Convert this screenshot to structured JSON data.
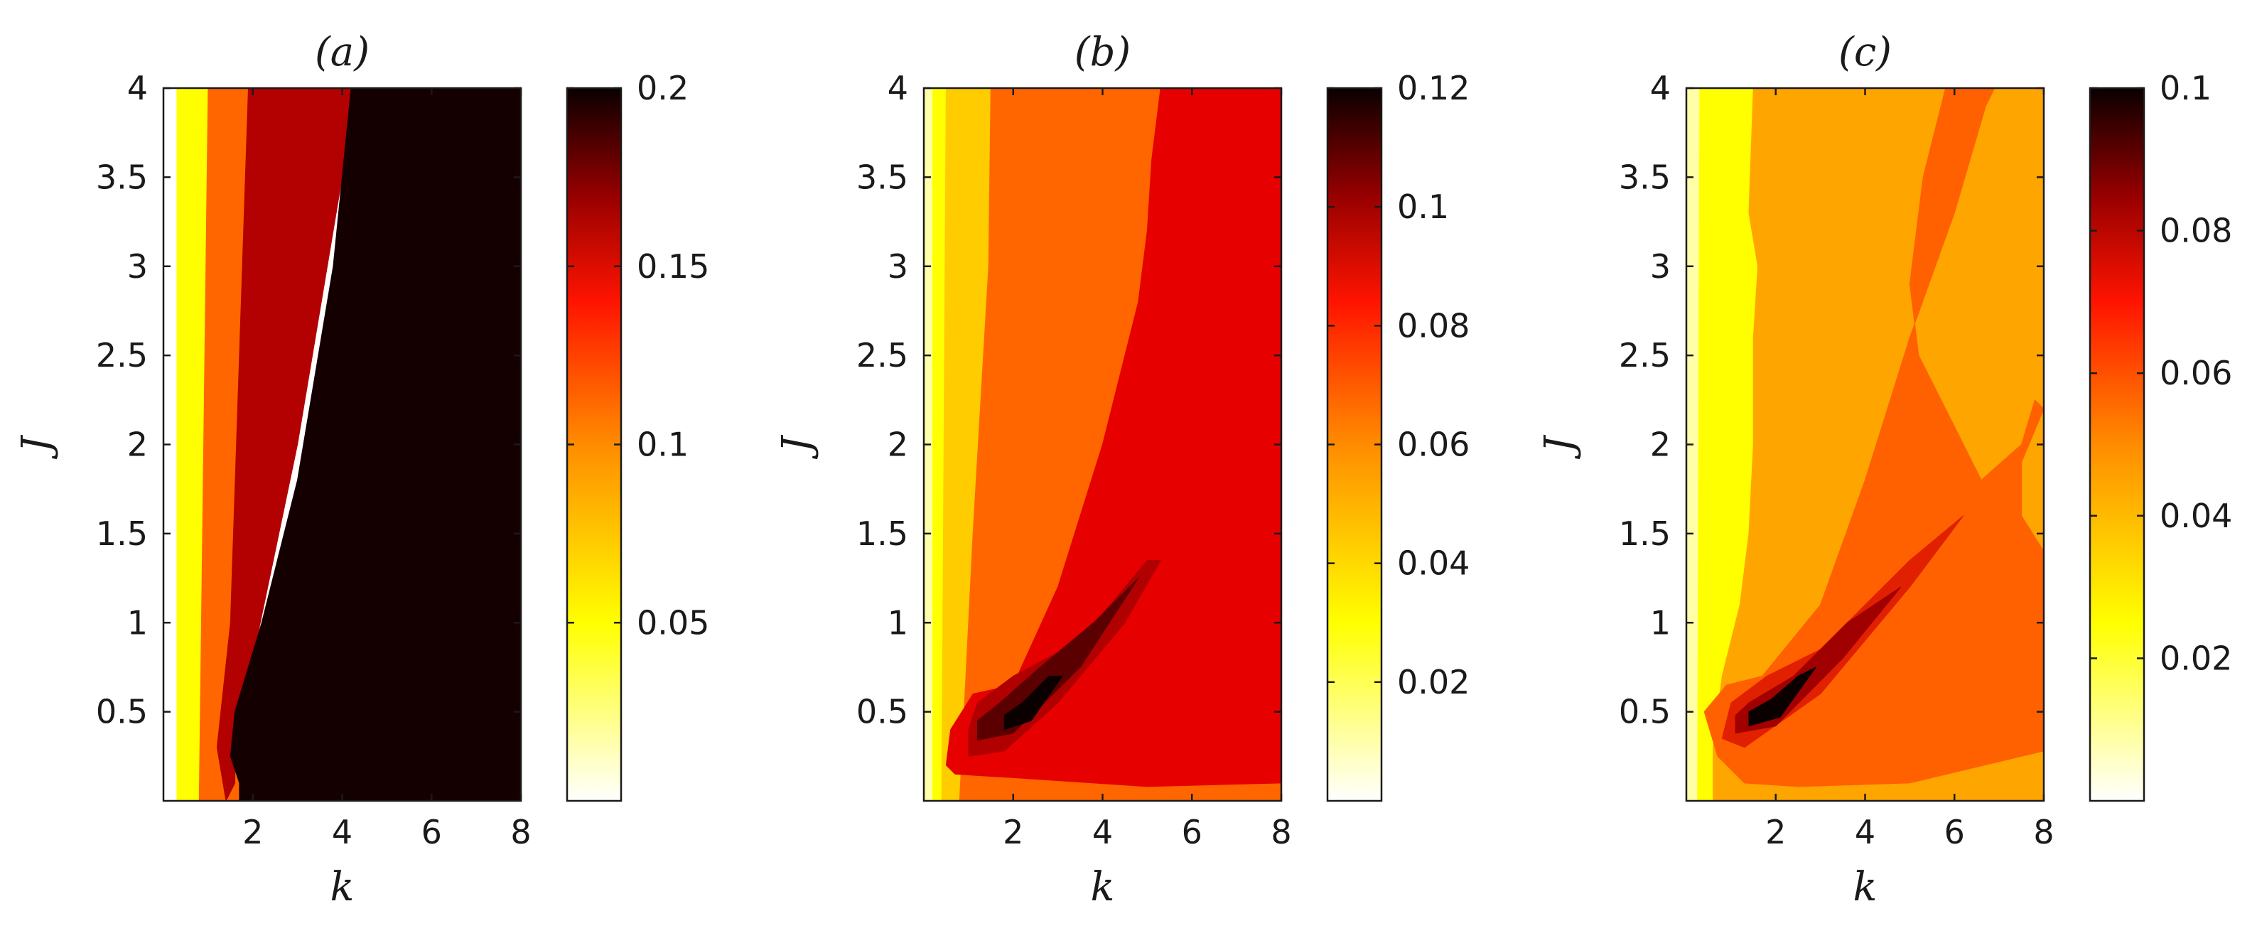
{
  "chart_data": [
    {
      "type": "heatmap",
      "title": "(a)",
      "xlabel": "k",
      "ylabel": "J",
      "xlim": [
        0,
        8
      ],
      "ylim": [
        0,
        4
      ],
      "xticks": [
        "2",
        "4",
        "6",
        "8"
      ],
      "yticks": [
        "0.5",
        "1",
        "1.5",
        "2",
        "2.5",
        "3",
        "3.5",
        "4"
      ],
      "colorbar": {
        "range": [
          0,
          0.2
        ],
        "ticks": [
          "0.05",
          "0.1",
          "0.15",
          "0.2"
        ]
      },
      "regions": [
        {
          "level": 0.0,
          "color": "#ffffff",
          "points": [
            [
              0,
              0
            ],
            [
              0.3,
              0
            ],
            [
              0.3,
              4
            ],
            [
              0,
              4
            ]
          ]
        },
        {
          "level": 0.03,
          "color": "#ffff00",
          "points": [
            [
              0.3,
              0
            ],
            [
              1.0,
              0
            ],
            [
              1.0,
              4
            ],
            [
              0.3,
              4
            ]
          ]
        },
        {
          "level": 0.085,
          "color": "#ff6600",
          "points": [
            [
              0.8,
              0
            ],
            [
              1.9,
              0
            ],
            [
              1.9,
              4
            ],
            [
              1.0,
              4
            ]
          ]
        },
        {
          "level": 0.16,
          "color": "#b30000",
          "points": [
            [
              1.4,
              0
            ],
            [
              1.6,
              0.1
            ],
            [
              1.6,
              0.4
            ],
            [
              2.0,
              0.8
            ],
            [
              3.0,
              2.0
            ],
            [
              4.0,
              3.5
            ],
            [
              4.2,
              4
            ],
            [
              1.9,
              4
            ],
            [
              1.5,
              1.0
            ],
            [
              1.2,
              0.3
            ]
          ]
        },
        {
          "level": 0.2,
          "color": "#140000",
          "points": [
            [
              1.7,
              0
            ],
            [
              8,
              0
            ],
            [
              8,
              4
            ],
            [
              4.2,
              4
            ],
            [
              3.8,
              3.0
            ],
            [
              3.0,
              1.8
            ],
            [
              2.2,
              1.0
            ],
            [
              1.6,
              0.5
            ],
            [
              1.5,
              0.25
            ],
            [
              1.7,
              0.1
            ]
          ]
        }
      ]
    },
    {
      "type": "heatmap",
      "title": "(b)",
      "xlabel": "k",
      "ylabel": "J",
      "xlim": [
        0,
        8
      ],
      "ylim": [
        0,
        4
      ],
      "xticks": [
        "2",
        "4",
        "6",
        "8"
      ],
      "yticks": [
        "0.5",
        "1",
        "1.5",
        "2",
        "2.5",
        "3",
        "3.5",
        "4"
      ],
      "colorbar": {
        "range": [
          0,
          0.12
        ],
        "ticks": [
          "0.02",
          "0.04",
          "0.06",
          "0.08",
          "0.1",
          "0.12"
        ]
      },
      "regions": [
        {
          "level": 0.0,
          "color": "#ffffa8",
          "points": [
            [
              0,
              0
            ],
            [
              8,
              0
            ],
            [
              8,
              4
            ],
            [
              0,
              4
            ]
          ]
        },
        {
          "level": 0.03,
          "color": "#ffff00",
          "points": [
            [
              0.2,
              0
            ],
            [
              8,
              0
            ],
            [
              8,
              4
            ],
            [
              0.2,
              4
            ]
          ]
        },
        {
          "level": 0.045,
          "color": "#ffcc00",
          "points": [
            [
              0.4,
              0
            ],
            [
              8,
              0
            ],
            [
              8,
              4
            ],
            [
              0.5,
              4
            ]
          ]
        },
        {
          "level": 0.06,
          "color": "#ff6600",
          "points": [
            [
              0.8,
              0
            ],
            [
              8,
              0
            ],
            [
              8,
              4
            ],
            [
              1.5,
              4
            ],
            [
              1.45,
              3
            ],
            [
              1.1,
              1.5
            ],
            [
              0.9,
              0.5
            ]
          ]
        },
        {
          "level": 0.075,
          "color": "#e60000",
          "points": [
            [
              0.7,
              0.15
            ],
            [
              2.0,
              0.13
            ],
            [
              5.0,
              0.08
            ],
            [
              8,
              0.1
            ],
            [
              8,
              4
            ],
            [
              5.3,
              4
            ],
            [
              5.1,
              3.6
            ],
            [
              5.0,
              3.2
            ],
            [
              4.8,
              2.8
            ],
            [
              4.0,
              2.0
            ],
            [
              3.0,
              1.2
            ],
            [
              2.0,
              0.65
            ],
            [
              1.1,
              0.6
            ],
            [
              0.6,
              0.4
            ],
            [
              0.5,
              0.2
            ]
          ]
        },
        {
          "level": 0.09,
          "color": "#b00000",
          "points": [
            [
              1.0,
              0.25
            ],
            [
              1.8,
              0.28
            ],
            [
              3.0,
              0.55
            ],
            [
              4.5,
              1.0
            ],
            [
              5.3,
              1.35
            ],
            [
              5.0,
              1.35
            ],
            [
              3.5,
              0.9
            ],
            [
              2.0,
              0.7
            ],
            [
              1.2,
              0.55
            ],
            [
              1.0,
              0.4
            ]
          ]
        },
        {
          "level": 0.105,
          "color": "#5a0000",
          "points": [
            [
              1.2,
              0.34
            ],
            [
              2.0,
              0.38
            ],
            [
              3.5,
              0.75
            ],
            [
              4.8,
              1.25
            ],
            [
              3.8,
              1.0
            ],
            [
              2.6,
              0.75
            ],
            [
              1.7,
              0.55
            ],
            [
              1.2,
              0.45
            ]
          ]
        },
        {
          "level": 0.12,
          "color": "#0a0000",
          "points": [
            [
              1.8,
              0.4
            ],
            [
              2.4,
              0.45
            ],
            [
              3.1,
              0.7
            ],
            [
              2.8,
              0.7
            ],
            [
              2.2,
              0.55
            ],
            [
              1.8,
              0.48
            ]
          ]
        }
      ]
    },
    {
      "type": "heatmap",
      "title": "(c)",
      "xlabel": "k",
      "ylabel": "J",
      "xlim": [
        0,
        8
      ],
      "ylim": [
        0,
        4
      ],
      "xticks": [
        "2",
        "4",
        "6",
        "8"
      ],
      "yticks": [
        "0.5",
        "1",
        "1.5",
        "2",
        "2.5",
        "3",
        "3.5",
        "4"
      ],
      "colorbar": {
        "range": [
          0,
          0.1
        ],
        "ticks": [
          "0.02",
          "0.04",
          "0.06",
          "0.08",
          "0.1"
        ]
      },
      "regions": [
        {
          "level": 0.0,
          "color": "#ffffa8",
          "points": [
            [
              0,
              0
            ],
            [
              8,
              0
            ],
            [
              8,
              4
            ],
            [
              0,
              4
            ]
          ]
        },
        {
          "level": 0.03,
          "color": "#ffff00",
          "points": [
            [
              0.25,
              0
            ],
            [
              8,
              0
            ],
            [
              8,
              4
            ],
            [
              0.3,
              4
            ]
          ]
        },
        {
          "level": 0.042,
          "color": "#ffa500",
          "points": [
            [
              0.6,
              0
            ],
            [
              8,
              0
            ],
            [
              8,
              4
            ],
            [
              1.5,
              4
            ],
            [
              1.4,
              3.3
            ],
            [
              1.6,
              3.0
            ],
            [
              1.5,
              2.6
            ],
            [
              1.5,
              2.0
            ],
            [
              1.4,
              1.5
            ],
            [
              1.2,
              1.1
            ],
            [
              0.8,
              0.7
            ],
            [
              0.6,
              0.3
            ]
          ]
        },
        {
          "level": 0.055,
          "color": "#ff6000",
          "points": [
            [
              0.4,
              0.5
            ],
            [
              0.7,
              0.25
            ],
            [
              1.3,
              0.1
            ],
            [
              2.5,
              0.08
            ],
            [
              5.0,
              0.1
            ],
            [
              8,
              0.28
            ],
            [
              8,
              1.4
            ],
            [
              7.5,
              1.6
            ],
            [
              7.5,
              1.9
            ],
            [
              8,
              2.2
            ],
            [
              7.8,
              2.25
            ],
            [
              7.5,
              2.0
            ],
            [
              6.6,
              1.8
            ],
            [
              6.0,
              2.1
            ],
            [
              5.2,
              2.5
            ],
            [
              5.0,
              2.9
            ],
            [
              5.3,
              3.5
            ],
            [
              5.8,
              4.0
            ],
            [
              6.9,
              4.0
            ],
            [
              6.7,
              3.9
            ],
            [
              6.0,
              3.3
            ],
            [
              5.0,
              2.6
            ],
            [
              4.0,
              1.8
            ],
            [
              3.0,
              1.1
            ],
            [
              1.7,
              0.7
            ],
            [
              0.9,
              0.65
            ]
          ]
        },
        {
          "level": 0.07,
          "color": "#e02000",
          "points": [
            [
              0.8,
              0.35
            ],
            [
              1.3,
              0.3
            ],
            [
              3.0,
              0.6
            ],
            [
              5.0,
              1.2
            ],
            [
              6.2,
              1.6
            ],
            [
              5.0,
              1.35
            ],
            [
              3.0,
              0.85
            ],
            [
              1.8,
              0.7
            ],
            [
              1.0,
              0.55
            ]
          ]
        },
        {
          "level": 0.085,
          "color": "#a00000",
          "points": [
            [
              1.1,
              0.38
            ],
            [
              2.0,
              0.42
            ],
            [
              3.5,
              0.8
            ],
            [
              4.8,
              1.2
            ],
            [
              3.6,
              1.0
            ],
            [
              2.4,
              0.7
            ],
            [
              1.4,
              0.55
            ],
            [
              1.1,
              0.48
            ]
          ]
        },
        {
          "level": 0.1,
          "color": "#0a0000",
          "points": [
            [
              1.4,
              0.42
            ],
            [
              2.1,
              0.47
            ],
            [
              2.9,
              0.75
            ],
            [
              2.5,
              0.7
            ],
            [
              1.9,
              0.57
            ],
            [
              1.4,
              0.5
            ]
          ]
        }
      ]
    }
  ]
}
